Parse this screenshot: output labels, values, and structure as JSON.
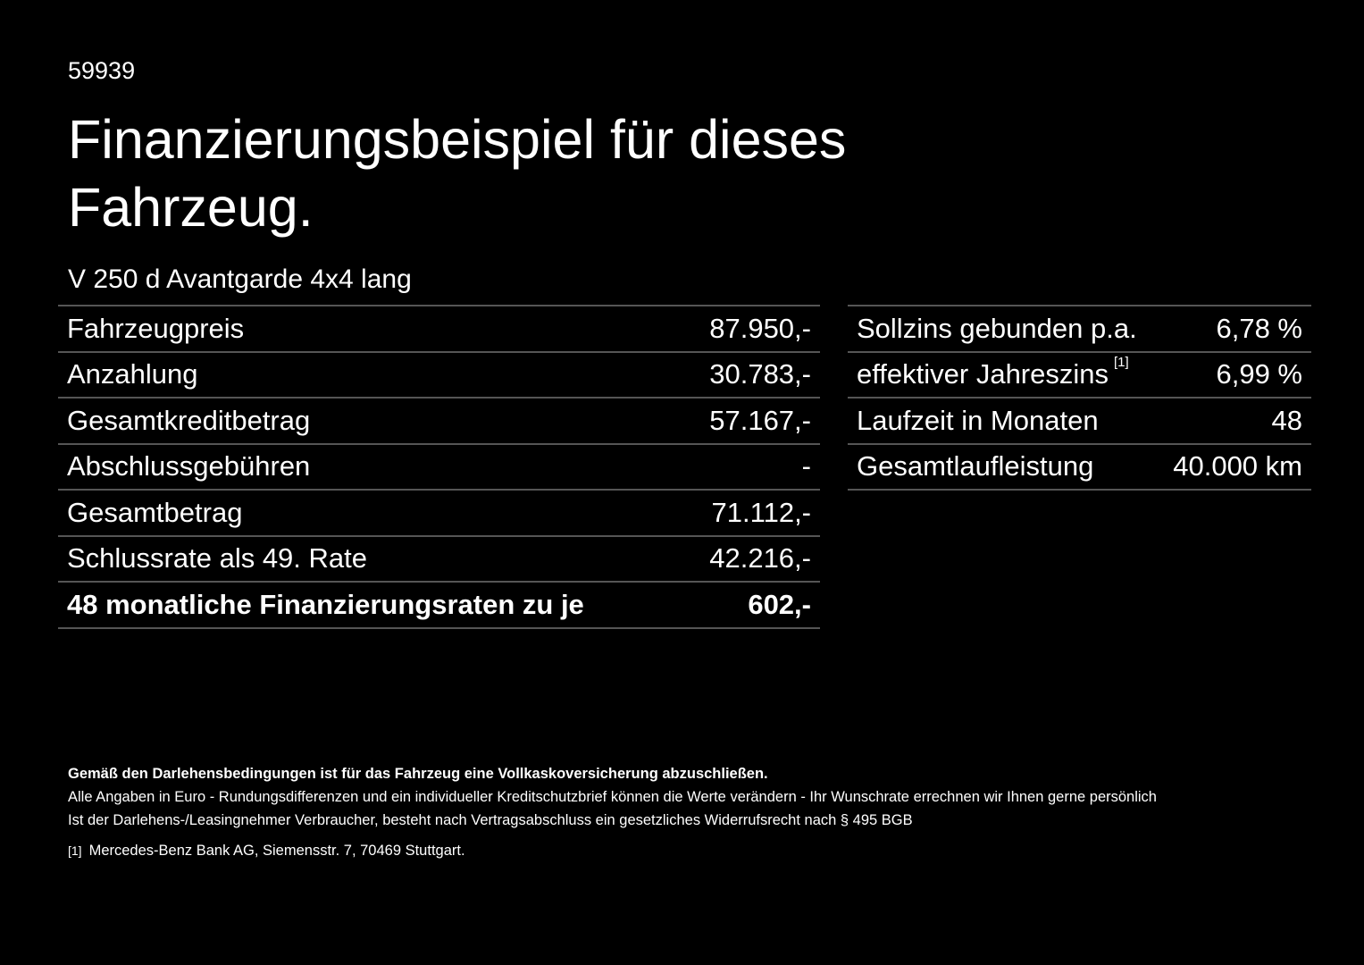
{
  "code": "59939",
  "title": "Finanzierungsbeispiel für dieses Fahrzeug.",
  "model": "V 250 d Avantgarde 4x4 lang",
  "left_rows": [
    {
      "label": "Fahrzeugpreis",
      "value": "87.950,-"
    },
    {
      "label": "Anzahlung",
      "value": "30.783,-"
    },
    {
      "label": "Gesamtkreditbetrag",
      "value": "57.167,-"
    },
    {
      "label": "Abschlussgebühren",
      "value": "-"
    },
    {
      "label": "Gesamtbetrag",
      "value": "71.112,-"
    },
    {
      "label": "Schlussrate als 49. Rate",
      "value": "42.216,-"
    },
    {
      "label": "48 monatliche Finanzierungsraten zu je",
      "value": "602,-"
    }
  ],
  "right_rows": [
    {
      "label": "Sollzins gebunden p.a.",
      "value": "6,78 %"
    },
    {
      "label": "effektiver Jahreszins",
      "sup": "[1]",
      "value": "6,99 %"
    },
    {
      "label": "Laufzeit in Monaten",
      "value": "48"
    },
    {
      "label": "Gesamtlaufleistung",
      "value": "40.000 km"
    }
  ],
  "notes": {
    "bold": "Gemäß den Darlehensbedingungen ist für das Fahrzeug eine Vollkaskoversicherung abzuschließen.",
    "line1": "Alle Angaben in Euro - Rundungsdifferenzen und ein individueller Kreditschutzbrief können die Werte verändern - Ihr Wunschrate errechnen wir Ihnen gerne persönlich",
    "line2": "Ist der Darlehens-/Leasingnehmer Verbraucher, besteht nach Vertragsabschluss ein gesetzliches Widerrufsrecht nach § 495 BGB",
    "footnote_mark": "[1]",
    "footnote": "Mercedes-Benz Bank AG, Siemensstr. 7, 70469 Stuttgart."
  }
}
